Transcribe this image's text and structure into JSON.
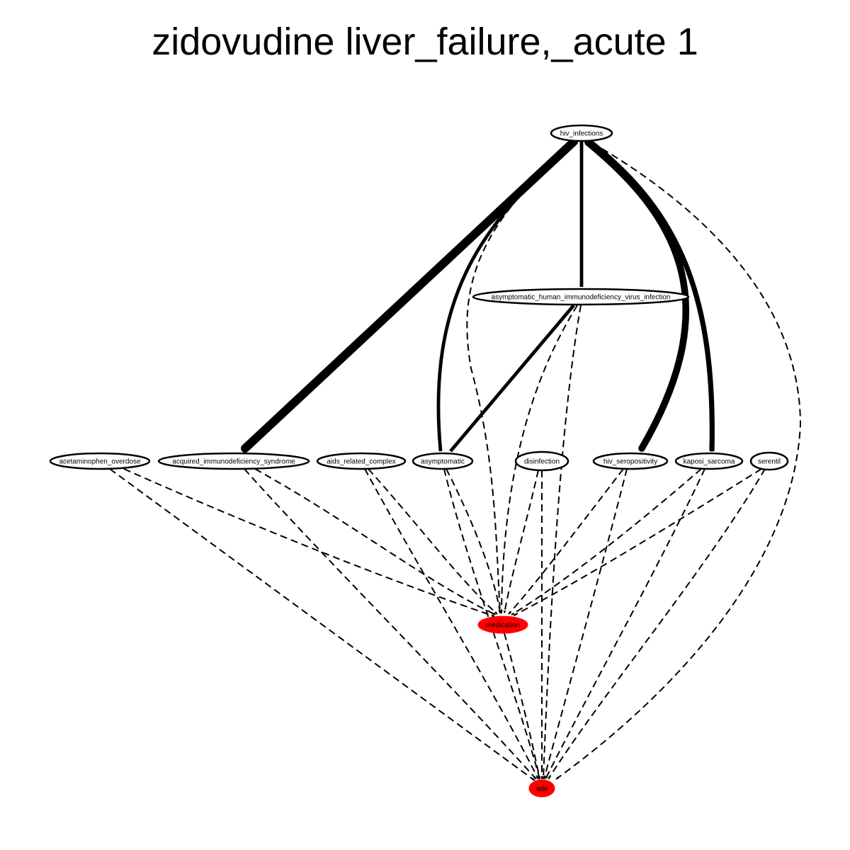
{
  "title": "zidovudine liver_failure,_acute 1",
  "colors": {
    "background": "#ffffff",
    "edge": "#000000",
    "node_stroke": "#000000",
    "node_fill": "#ffffff",
    "highlight_fill": "#ff0000"
  },
  "nodes": [
    {
      "id": "hiv_infections",
      "label": "hiv_infections",
      "highlight": false
    },
    {
      "id": "asymptomatic_hiv",
      "label": "asymptomatic_human_immunodeficiency_virus_infection",
      "highlight": false
    },
    {
      "id": "acetaminophen_overdose",
      "label": "acetaminophen_overdose",
      "highlight": false
    },
    {
      "id": "aids",
      "label": "acquired_immunodeficiency_syndrome",
      "highlight": false
    },
    {
      "id": "aids_related_complex",
      "label": "aids_related_complex",
      "highlight": false
    },
    {
      "id": "asymptomatic",
      "label": "asymptomatic",
      "highlight": false
    },
    {
      "id": "disinfection",
      "label": "disinfection",
      "highlight": false
    },
    {
      "id": "hiv_seropositivity",
      "label": "hiv_seropositivity",
      "highlight": false
    },
    {
      "id": "kaposi_sarcoma",
      "label": "kaposi_sarcoma",
      "highlight": false
    },
    {
      "id": "serentil",
      "label": "serentil",
      "highlight": false
    },
    {
      "id": "medication",
      "label": "medication",
      "highlight": true
    },
    {
      "id": "ade",
      "label": "ade",
      "highlight": true
    }
  ],
  "edges": [
    {
      "from": "hiv_infections",
      "to": "aids",
      "style": "solid",
      "weight": 5
    },
    {
      "from": "hiv_infections",
      "to": "asymptomatic_hiv",
      "style": "solid",
      "weight": 2
    },
    {
      "from": "hiv_infections",
      "to": "asymptomatic",
      "style": "solid",
      "weight": 2
    },
    {
      "from": "hiv_infections",
      "to": "hiv_seropositivity",
      "style": "solid",
      "weight": 4
    },
    {
      "from": "hiv_infections",
      "to": "kaposi_sarcoma",
      "style": "solid",
      "weight": 3
    },
    {
      "from": "hiv_infections",
      "to": "medication",
      "style": "dashed",
      "weight": 1
    },
    {
      "from": "hiv_infections",
      "to": "ade",
      "style": "dashed",
      "weight": 1
    },
    {
      "from": "asymptomatic_hiv",
      "to": "asymptomatic",
      "style": "solid",
      "weight": 2
    },
    {
      "from": "asymptomatic_hiv",
      "to": "medication",
      "style": "dashed",
      "weight": 1
    },
    {
      "from": "asymptomatic_hiv",
      "to": "ade",
      "style": "dashed",
      "weight": 1
    },
    {
      "from": "acetaminophen_overdose",
      "to": "medication",
      "style": "dashed",
      "weight": 1
    },
    {
      "from": "acetaminophen_overdose",
      "to": "ade",
      "style": "dashed",
      "weight": 1
    },
    {
      "from": "aids",
      "to": "medication",
      "style": "dashed",
      "weight": 1
    },
    {
      "from": "aids",
      "to": "ade",
      "style": "dashed",
      "weight": 1
    },
    {
      "from": "aids_related_complex",
      "to": "medication",
      "style": "dashed",
      "weight": 1
    },
    {
      "from": "aids_related_complex",
      "to": "ade",
      "style": "dashed",
      "weight": 1
    },
    {
      "from": "asymptomatic",
      "to": "medication",
      "style": "dashed",
      "weight": 1
    },
    {
      "from": "asymptomatic",
      "to": "ade",
      "style": "dashed",
      "weight": 1
    },
    {
      "from": "disinfection",
      "to": "medication",
      "style": "dashed",
      "weight": 1
    },
    {
      "from": "disinfection",
      "to": "ade",
      "style": "dashed",
      "weight": 1
    },
    {
      "from": "hiv_seropositivity",
      "to": "medication",
      "style": "dashed",
      "weight": 1
    },
    {
      "from": "hiv_seropositivity",
      "to": "ade",
      "style": "dashed",
      "weight": 1
    },
    {
      "from": "kaposi_sarcoma",
      "to": "medication",
      "style": "dashed",
      "weight": 1
    },
    {
      "from": "kaposi_sarcoma",
      "to": "ade",
      "style": "dashed",
      "weight": 1
    },
    {
      "from": "serentil",
      "to": "medication",
      "style": "dashed",
      "weight": 1
    },
    {
      "from": "serentil",
      "to": "ade",
      "style": "dashed",
      "weight": 1
    },
    {
      "from": "medication",
      "to": "ade",
      "style": "dashed",
      "weight": 1
    }
  ]
}
